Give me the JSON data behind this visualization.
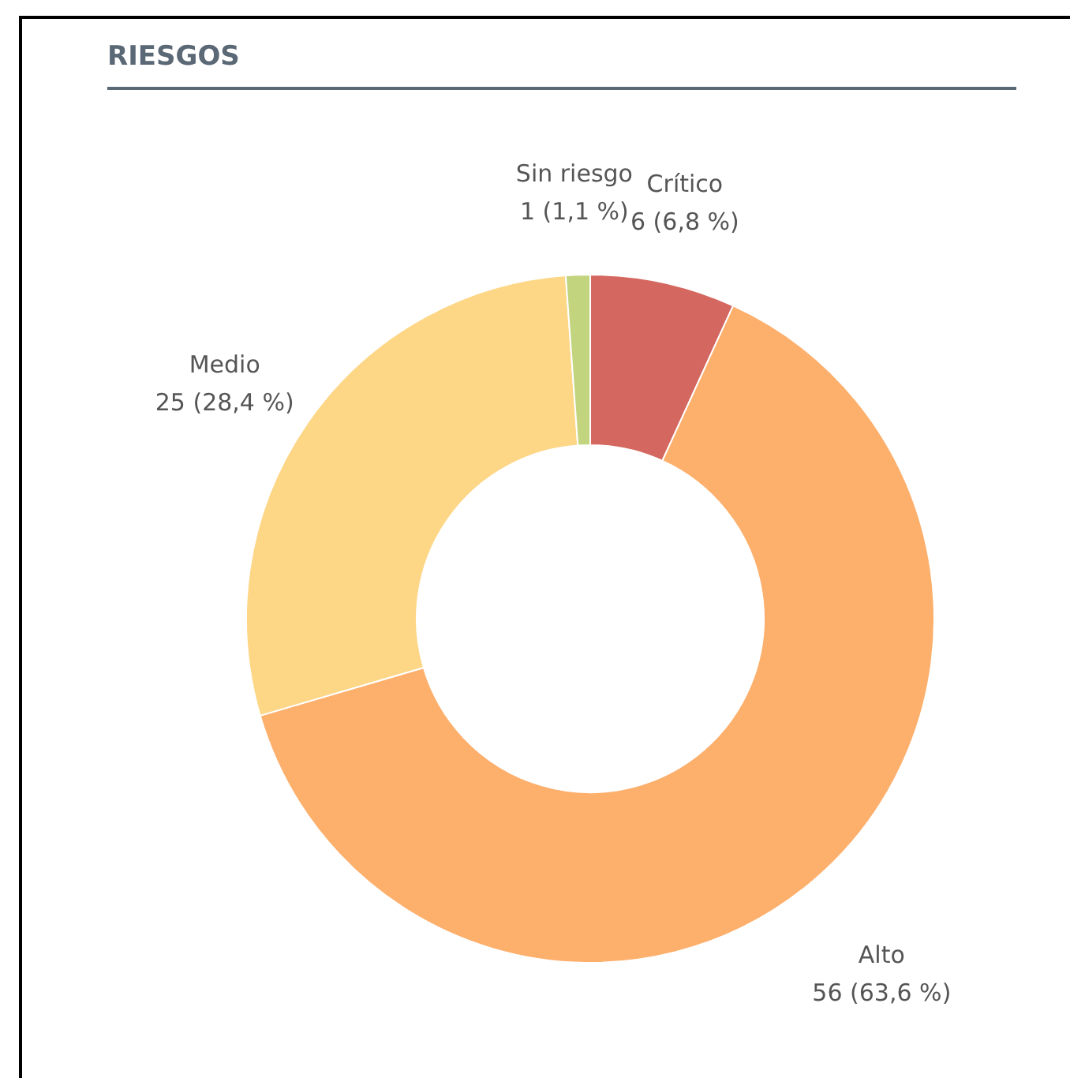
{
  "chart_data": {
    "type": "donut",
    "title": "RIESGOS",
    "categories": [
      "Crítico",
      "Alto",
      "Medio",
      "Sin riesgo"
    ],
    "values": [
      6,
      56,
      25,
      1
    ],
    "value_labels": [
      "6 (6,8 %)",
      "56 (63,6 %)",
      "25 (28,4 %)",
      "1 (1,1 %)"
    ],
    "colors": [
      "#d4675f",
      "#fdaf6c",
      "#fdd686",
      "#c3d47f"
    ]
  }
}
